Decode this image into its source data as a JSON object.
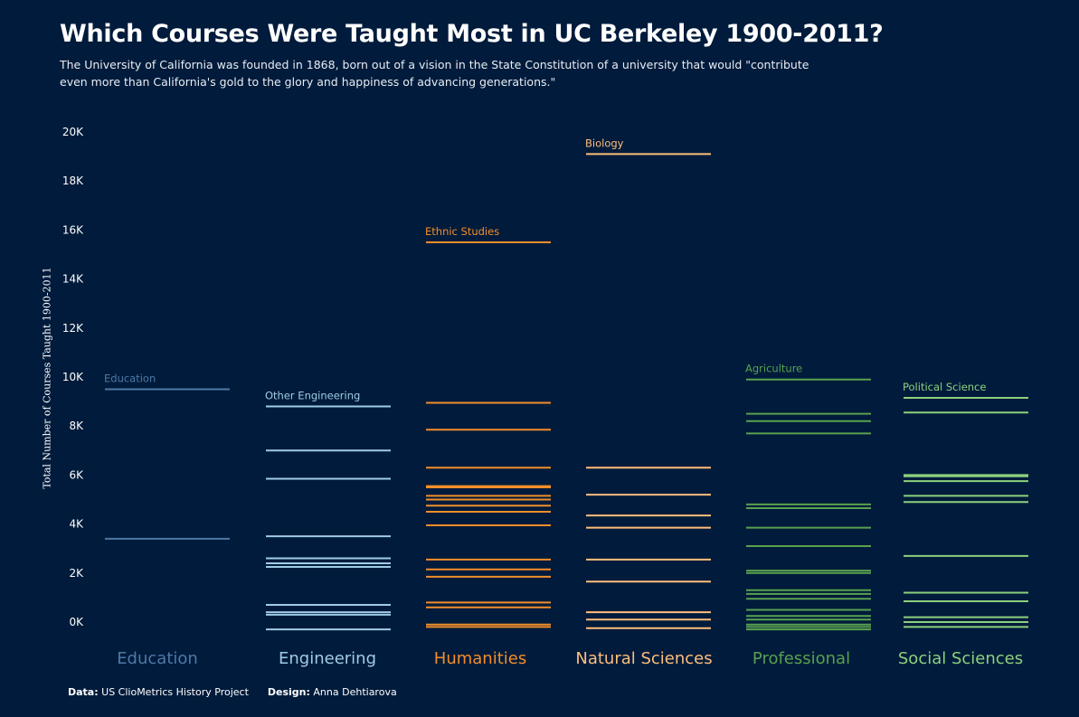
{
  "title": "Which Courses Were Taught Most in UC Berkeley 1900-2011?",
  "subtitle": "The University of California was founded in 1868, born out of a vision in the State Constitution of a university that would \"contribute even more than California's gold to the glory and happiness of advancing generations.\"",
  "footer": {
    "data_label": "Data:",
    "data_value": "US ClioMetrics History Project",
    "design_label": "Design:",
    "design_value": "Anna Dehtiarova"
  },
  "chart_data": {
    "type": "bar",
    "ylabel": "Total Number of Courses Taught 1900-2011",
    "ylim": [
      -700,
      20500
    ],
    "yticks": [
      0,
      2000,
      4000,
      6000,
      8000,
      10000,
      12000,
      14000,
      16000,
      18000,
      20000
    ],
    "ytick_labels": [
      "0K",
      "2K",
      "4K",
      "6K",
      "8K",
      "10K",
      "12K",
      "14K",
      "16K",
      "18K",
      "20K"
    ],
    "grid": false,
    "legend": "none",
    "groups": [
      {
        "name": "Education",
        "color": "#4e79a7",
        "top_label": "Education",
        "values": [
          9500,
          3400
        ]
      },
      {
        "name": "Engineering",
        "color": "#a0cbe8",
        "top_label": "Other Engineering",
        "values": [
          8800,
          7000,
          5850,
          3500,
          2600,
          2400,
          2250,
          700,
          400,
          300,
          -300
        ]
      },
      {
        "name": "Humanities",
        "color": "#f28e2b",
        "top_label": "Ethnic Studies",
        "values": [
          15500,
          8950,
          7850,
          6300,
          5550,
          5500,
          5150,
          5000,
          4750,
          4500,
          3950,
          2550,
          2150,
          1850,
          800,
          600,
          -100,
          -200
        ]
      },
      {
        "name": "Natural Sciences",
        "color": "#ffbe7d",
        "top_label": "Biology",
        "values": [
          19100,
          6300,
          5200,
          4350,
          3850,
          2550,
          1650,
          400,
          100,
          -250
        ]
      },
      {
        "name": "Professional",
        "color": "#59a14f",
        "top_label": "Agriculture",
        "values": [
          9900,
          8500,
          8200,
          7700,
          4800,
          4650,
          3850,
          3100,
          2100,
          2000,
          1300,
          1150,
          950,
          500,
          250,
          100,
          -100,
          -200,
          -300
        ]
      },
      {
        "name": "Social Sciences",
        "color": "#8cd17d",
        "top_label": "Political Science",
        "values": [
          9150,
          8550,
          6000,
          5950,
          5750,
          5150,
          4900,
          2700,
          1200,
          850,
          200,
          0,
          -200
        ]
      }
    ]
  }
}
